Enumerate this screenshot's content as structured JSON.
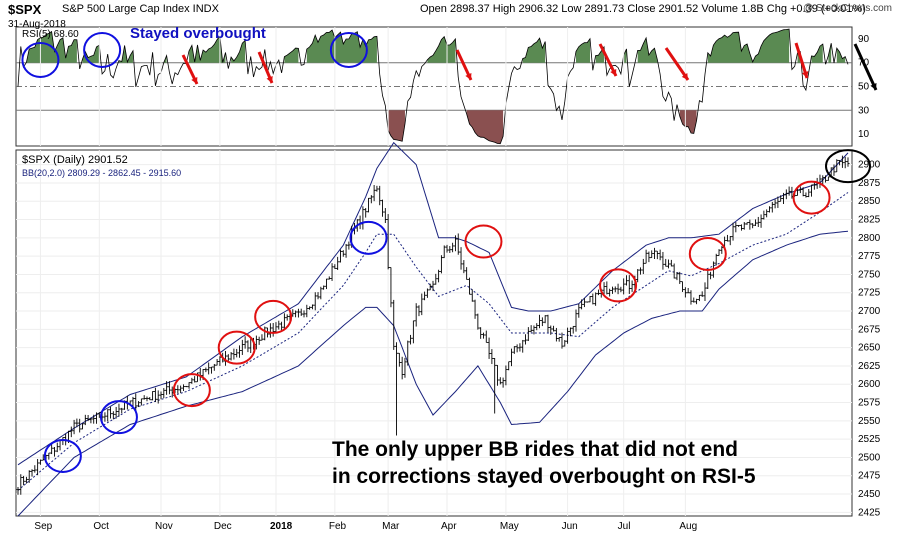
{
  "header": {
    "title": "$SPX",
    "subtitle": "S&P 500 Large Cap Index INDX",
    "date": "31-Aug-2018",
    "ohlc": "Open 2898.37  High 2906.32  Low 2891.73  Close 2901.52  Volume 1.8B  Chg +0.39 (+0.01%)",
    "watermark": "@ StockCharts.com"
  },
  "rsi_panel": {
    "legend": "RSI(5) 68.60"
  },
  "price_panel": {
    "legend": "$SPX (Daily) 2901.52",
    "bb_legend": "BB(20,2.0) 2809.29 - 2862.45 - 2915.60"
  },
  "annotations": {
    "stayed_overbought": "Stayed overbought",
    "main_line1": "The only upper BB rides that did not end",
    "main_line2": "in corrections stayed overbought on RSI-5"
  },
  "colors": {
    "price_bar": "#000000",
    "bollinger_band": "#1a237e",
    "rsi_overbought_fill": "#5a8a52",
    "rsi_oversold_fill": "#8a5050",
    "blue_circle": "#1010e0",
    "red_circle": "#e01010",
    "black_circle": "#000000",
    "arrow": "#e01010"
  },
  "chart_data": [
    {
      "type": "line",
      "panel": "RSI",
      "series": [
        {
          "name": "RSI(5)",
          "last": 68.6
        }
      ],
      "y_ticks": [
        10,
        30,
        50,
        70,
        90
      ],
      "reference_lines": [
        30,
        50,
        70
      ],
      "ylim": [
        0,
        100
      ]
    },
    {
      "type": "ohlc",
      "panel": "price",
      "x_ticks": [
        "Sep",
        "Oct",
        "Nov",
        "Dec",
        "2018",
        "Feb",
        "Mar",
        "Apr",
        "May",
        "Jun",
        "Jul",
        "Aug"
      ],
      "y_ticks": [
        2425,
        2450,
        2475,
        2500,
        2525,
        2550,
        2575,
        2600,
        2625,
        2650,
        2675,
        2700,
        2725,
        2750,
        2775,
        2800,
        2825,
        2850,
        2875,
        2900
      ],
      "ylim": [
        2420,
        2920
      ],
      "close_path": [
        [
          0,
          2463
        ],
        [
          10,
          2500
        ],
        [
          20,
          2541
        ],
        [
          30,
          2557
        ],
        [
          40,
          2574
        ],
        [
          50,
          2587
        ],
        [
          60,
          2599
        ],
        [
          70,
          2626
        ],
        [
          80,
          2650
        ],
        [
          90,
          2675
        ],
        [
          100,
          2695
        ],
        [
          108,
          2727
        ],
        [
          116,
          2783
        ],
        [
          124,
          2840
        ],
        [
          128,
          2870
        ],
        [
          131,
          2824
        ],
        [
          134,
          2649
        ],
        [
          137,
          2620
        ],
        [
          142,
          2700
        ],
        [
          148,
          2733
        ],
        [
          152,
          2782
        ],
        [
          156,
          2793
        ],
        [
          160,
          2740
        ],
        [
          164,
          2681
        ],
        [
          168,
          2640
        ],
        [
          172,
          2600
        ],
        [
          176,
          2640
        ],
        [
          182,
          2670
        ],
        [
          188,
          2690
        ],
        [
          194,
          2655
        ],
        [
          200,
          2700
        ],
        [
          206,
          2720
        ],
        [
          212,
          2736
        ],
        [
          218,
          2735
        ],
        [
          224,
          2772
        ],
        [
          228,
          2780
        ],
        [
          232,
          2760
        ],
        [
          236,
          2740
        ],
        [
          240,
          2718
        ],
        [
          244,
          2720
        ],
        [
          250,
          2790
        ],
        [
          256,
          2813
        ],
        [
          262,
          2815
        ],
        [
          268,
          2840
        ],
        [
          274,
          2856
        ],
        [
          280,
          2860
        ],
        [
          286,
          2874
        ],
        [
          292,
          2900
        ],
        [
          296,
          2901.52
        ]
      ],
      "upper_band_path": [
        [
          0,
          2490
        ],
        [
          20,
          2540
        ],
        [
          40,
          2586
        ],
        [
          60,
          2610
        ],
        [
          80,
          2665
        ],
        [
          100,
          2710
        ],
        [
          116,
          2790
        ],
        [
          124,
          2856
        ],
        [
          128,
          2895
        ],
        [
          134,
          2930
        ],
        [
          142,
          2900
        ],
        [
          150,
          2800
        ],
        [
          156,
          2800
        ],
        [
          160,
          2795
        ],
        [
          168,
          2780
        ],
        [
          176,
          2705
        ],
        [
          182,
          2700
        ],
        [
          190,
          2700
        ],
        [
          200,
          2710
        ],
        [
          212,
          2755
        ],
        [
          224,
          2790
        ],
        [
          232,
          2800
        ],
        [
          240,
          2800
        ],
        [
          250,
          2805
        ],
        [
          262,
          2840
        ],
        [
          274,
          2860
        ],
        [
          286,
          2875
        ],
        [
          296,
          2916
        ]
      ],
      "middle_band_path": [
        [
          0,
          2455
        ],
        [
          20,
          2520
        ],
        [
          40,
          2566
        ],
        [
          60,
          2590
        ],
        [
          80,
          2625
        ],
        [
          100,
          2670
        ],
        [
          116,
          2735
        ],
        [
          124,
          2780
        ],
        [
          128,
          2805
        ],
        [
          134,
          2805
        ],
        [
          142,
          2760
        ],
        [
          150,
          2720
        ],
        [
          160,
          2735
        ],
        [
          168,
          2710
        ],
        [
          176,
          2670
        ],
        [
          190,
          2670
        ],
        [
          200,
          2665
        ],
        [
          212,
          2705
        ],
        [
          224,
          2735
        ],
        [
          232,
          2755
        ],
        [
          240,
          2748
        ],
        [
          250,
          2765
        ],
        [
          262,
          2790
        ],
        [
          274,
          2805
        ],
        [
          286,
          2835
        ],
        [
          296,
          2862
        ]
      ],
      "lower_band_path": [
        [
          0,
          2420
        ],
        [
          20,
          2500
        ],
        [
          40,
          2545
        ],
        [
          60,
          2570
        ],
        [
          80,
          2590
        ],
        [
          100,
          2625
        ],
        [
          116,
          2680
        ],
        [
          124,
          2705
        ],
        [
          128,
          2705
        ],
        [
          134,
          2680
        ],
        [
          142,
          2600
        ],
        [
          148,
          2558
        ],
        [
          156,
          2590
        ],
        [
          164,
          2625
        ],
        [
          172,
          2575
        ],
        [
          176,
          2545
        ],
        [
          186,
          2548
        ],
        [
          196,
          2590
        ],
        [
          206,
          2640
        ],
        [
          216,
          2670
        ],
        [
          226,
          2690
        ],
        [
          236,
          2700
        ],
        [
          244,
          2700
        ],
        [
          250,
          2730
        ],
        [
          262,
          2770
        ],
        [
          274,
          2790
        ],
        [
          286,
          2805
        ],
        [
          296,
          2809
        ]
      ]
    }
  ]
}
